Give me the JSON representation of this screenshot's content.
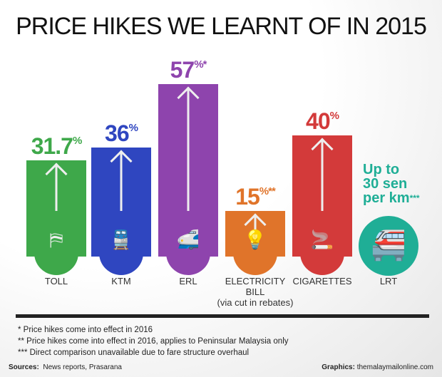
{
  "chart_data": {
    "type": "bar",
    "title": "PRICE HIKES WE LEARNT OF IN 2015",
    "categories": [
      "TOLL",
      "KTM",
      "ERL",
      "ELECTRICITY BILL (via cut in rebates)",
      "CIGARETTES",
      "LRT"
    ],
    "bars": [
      {
        "label": "TOLL",
        "sublabel": "",
        "value": 31.7,
        "display": "31.7",
        "unit": "%",
        "mark": "",
        "color": "#3ea84a",
        "icon": "toll-gate-icon",
        "glyph": "⛿"
      },
      {
        "label": "KTM",
        "sublabel": "",
        "value": 36,
        "display": "36",
        "unit": "%",
        "mark": "",
        "color": "#2f46c0",
        "icon": "train-icon",
        "glyph": "🚆"
      },
      {
        "label": "ERL",
        "sublabel": "",
        "value": 57,
        "display": "57",
        "unit": "%",
        "mark": "*",
        "color": "#8e44ad",
        "icon": "express-train-icon",
        "glyph": "🚅"
      },
      {
        "label": "ELECTRICITY",
        "sublabel": "BILL",
        "sublabel2": "(via cut in rebates)",
        "value": 15,
        "display": "15",
        "unit": "%",
        "mark": "**",
        "color": "#e0742a",
        "icon": "light-bulb-icon",
        "glyph": "💡"
      },
      {
        "label": "CIGARETTES",
        "sublabel": "",
        "value": 40,
        "display": "40",
        "unit": "%",
        "mark": "",
        "color": "#d33a3a",
        "icon": "cigarette-icon",
        "glyph": "🚬"
      }
    ],
    "lrt": {
      "label": "LRT",
      "line1": "Up to",
      "line2": "30 sen",
      "line3": "per km",
      "mark": "***",
      "color": "#1fae96",
      "icon": "lrt-train-icon"
    },
    "ylim": [
      0,
      60
    ]
  },
  "footnotes": [
    "* Price hikes come into effect in 2016",
    "** Price hikes come into effect in 2016, applies to Peninsular Malaysia only",
    "*** Direct comparison unavailable due to fare structure overhaul"
  ],
  "sources": {
    "label": "Sources:",
    "text": "News reports, Prasarana"
  },
  "graphics": {
    "label": "Graphics:",
    "text": "themalaymailonline.com"
  }
}
